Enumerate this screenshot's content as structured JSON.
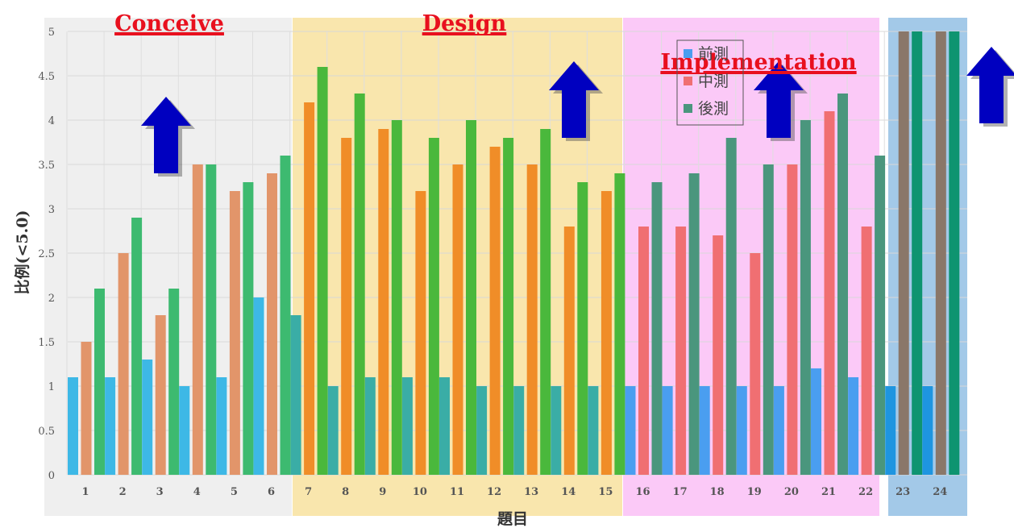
{
  "chart_data": {
    "type": "bar",
    "xlabel": "題目",
    "ylabel": "比例(<5.0)",
    "ylim": [
      0,
      5
    ],
    "yticks": [
      "0",
      "0.5",
      "1",
      "1.5",
      "2",
      "2.5",
      "3",
      "3.5",
      "4",
      "4.5",
      "5"
    ],
    "grid": true,
    "legend_position": "top-center",
    "categories": [
      "1",
      "2",
      "3",
      "4",
      "5",
      "6",
      "7",
      "8",
      "9",
      "10",
      "11",
      "12",
      "13",
      "14",
      "15",
      "16",
      "17",
      "18",
      "19",
      "20",
      "21",
      "22",
      "23",
      "24"
    ],
    "series": [
      {
        "name": "前測",
        "values": [
          1.1,
          1.1,
          1.3,
          1.0,
          1.1,
          2.0,
          1.8,
          1.0,
          1.1,
          1.1,
          1.1,
          1.0,
          1.0,
          1.0,
          1.0,
          1.0,
          1.0,
          1.0,
          1.0,
          1.0,
          1.2,
          1.1,
          1.0,
          1.0
        ]
      },
      {
        "name": "中測",
        "values": [
          1.5,
          2.5,
          1.8,
          3.5,
          3.2,
          3.4,
          4.2,
          3.8,
          3.9,
          3.2,
          3.5,
          3.7,
          3.5,
          2.8,
          3.2,
          2.8,
          2.8,
          2.7,
          2.5,
          3.5,
          4.1,
          2.8,
          5.0,
          5.0
        ]
      },
      {
        "name": "後測",
        "values": [
          2.1,
          2.9,
          2.1,
          3.5,
          3.3,
          3.6,
          4.6,
          4.3,
          4.0,
          3.8,
          4.0,
          3.8,
          3.9,
          3.3,
          3.4,
          3.3,
          3.4,
          3.8,
          3.5,
          4.0,
          4.3,
          3.6,
          5.0,
          5.0
        ]
      }
    ],
    "phases": [
      {
        "label": "Conceive",
        "first": 1,
        "last": 6,
        "bg": "#efefef",
        "colors": [
          "#3db8e6",
          "#e2956a",
          "#3dba70"
        ]
      },
      {
        "label": "Design",
        "first": 7,
        "last": 15,
        "bg": "#f9e6ad",
        "colors": [
          "#3aada6",
          "#f08d28",
          "#4ab83c"
        ]
      },
      {
        "label": "Implementation",
        "first": 16,
        "last": 22,
        "bg": "#fbc9f7",
        "colors": [
          "#4a9ef0",
          "#f06f72",
          "#4a967d"
        ]
      },
      {
        "label": "",
        "first": 23,
        "last": 24,
        "bg": "#a3c9e8",
        "colors": [
          "#1e95e0",
          "#8a7769",
          "#0e9470"
        ]
      }
    ],
    "legend_colors": [
      "#4a9ef0",
      "#f06f72",
      "#4a967d"
    ],
    "arrow_color": "#0000c0"
  }
}
